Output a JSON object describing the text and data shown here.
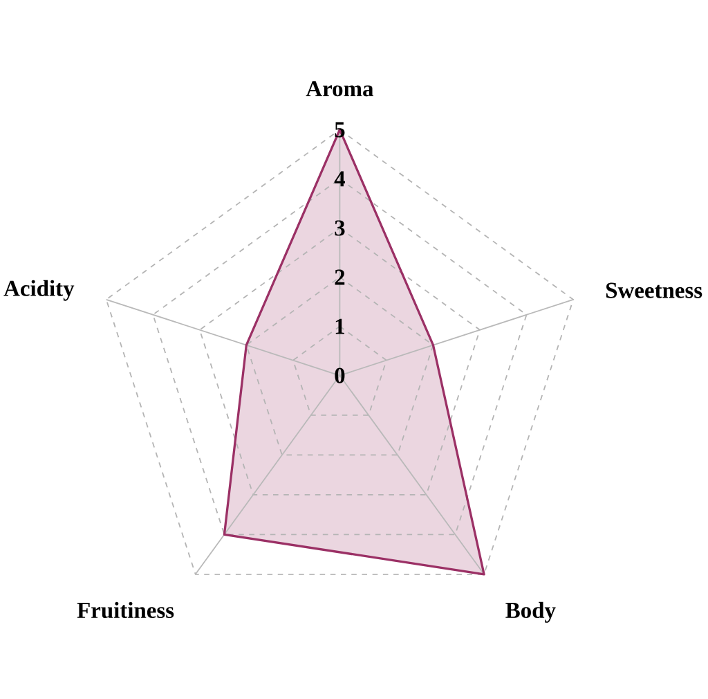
{
  "chart_data": {
    "type": "radar",
    "categories": [
      "Aroma",
      "Sweetness",
      "Body",
      "Fruitiness",
      "Acidity"
    ],
    "series": [
      {
        "color": "#9b3065",
        "values": [
          5,
          2,
          5,
          4,
          2
        ]
      }
    ],
    "ylim": [
      0,
      5
    ],
    "yticks": [
      0,
      1,
      2,
      3,
      4,
      5
    ],
    "grid": true
  }
}
